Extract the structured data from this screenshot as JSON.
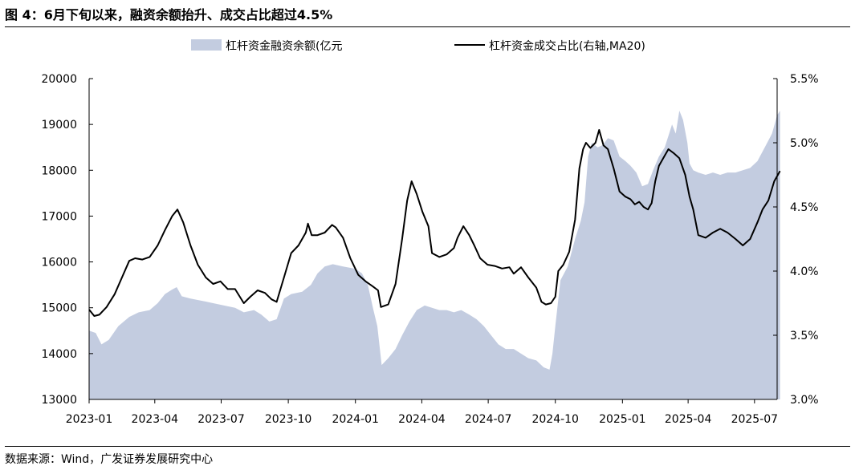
{
  "header": {
    "figure_label": "图 4：",
    "title": "6月下旬以来，融资余额抬升、成交占比超过4.5%"
  },
  "footer": {
    "source": "数据来源：Wind，广发证券发展研究中心"
  },
  "chart_data": {
    "type": "area",
    "legend": {
      "placement": "top",
      "entries": [
        "杠杆资金融资余额(亿元",
        "杠杆资金成交占比(右轴,MA20)"
      ]
    },
    "grid": false,
    "x_ticks": [
      "2023-01",
      "2023-04",
      "2023-07",
      "2023-10",
      "2024-01",
      "2024-04",
      "2024-07",
      "2024-10",
      "2025-01",
      "2025-04",
      "2025-07"
    ],
    "x_range": [
      "2023-01",
      "2025-08"
    ],
    "left_axis": {
      "ticks": [
        "13000",
        "14000",
        "15000",
        "16000",
        "17000",
        "18000",
        "19000",
        "20000"
      ],
      "ylim": [
        13000,
        20000
      ]
    },
    "right_axis": {
      "ticks": [
        "3.0%",
        "3.5%",
        "4.0%",
        "4.5%",
        "5.0%",
        "5.5%"
      ],
      "ylim": [
        3.0,
        5.5
      ]
    },
    "colors": {
      "area": "#c3cce0",
      "line": "#000000"
    },
    "series": [
      {
        "name": "杠杆资金融资余额(亿元",
        "type": "area",
        "axis": "left",
        "points": [
          [
            "2023-01-01",
            14500
          ],
          [
            "2023-01-10",
            14450
          ],
          [
            "2023-01-18",
            14200
          ],
          [
            "2023-01-28",
            14300
          ],
          [
            "2023-02-10",
            14600
          ],
          [
            "2023-02-25",
            14800
          ],
          [
            "2023-03-10",
            14900
          ],
          [
            "2023-03-25",
            14950
          ],
          [
            "2023-04-05",
            15100
          ],
          [
            "2023-04-15",
            15300
          ],
          [
            "2023-04-25",
            15400
          ],
          [
            "2023-05-01",
            15450
          ],
          [
            "2023-05-08",
            15250
          ],
          [
            "2023-05-20",
            15200
          ],
          [
            "2023-06-05",
            15150
          ],
          [
            "2023-06-20",
            15100
          ],
          [
            "2023-07-05",
            15050
          ],
          [
            "2023-07-20",
            15000
          ],
          [
            "2023-08-01",
            14900
          ],
          [
            "2023-08-15",
            14950
          ],
          [
            "2023-08-25",
            14850
          ],
          [
            "2023-09-05",
            14700
          ],
          [
            "2023-09-15",
            14750
          ],
          [
            "2023-09-25",
            15200
          ],
          [
            "2023-10-05",
            15300
          ],
          [
            "2023-10-20",
            15350
          ],
          [
            "2023-11-01",
            15500
          ],
          [
            "2023-11-10",
            15750
          ],
          [
            "2023-11-20",
            15900
          ],
          [
            "2023-12-01",
            15950
          ],
          [
            "2023-12-15",
            15900
          ],
          [
            "2024-01-01",
            15850
          ],
          [
            "2024-01-10",
            15750
          ],
          [
            "2024-01-18",
            15500
          ],
          [
            "2024-01-25",
            15000
          ],
          [
            "2024-01-31",
            14600
          ],
          [
            "2024-02-06",
            13750
          ],
          [
            "2024-02-15",
            13900
          ],
          [
            "2024-02-25",
            14100
          ],
          [
            "2024-03-05",
            14400
          ],
          [
            "2024-03-15",
            14700
          ],
          [
            "2024-03-25",
            14950
          ],
          [
            "2024-04-05",
            15050
          ],
          [
            "2024-04-15",
            15000
          ],
          [
            "2024-04-25",
            14950
          ],
          [
            "2024-05-05",
            14950
          ],
          [
            "2024-05-15",
            14900
          ],
          [
            "2024-05-25",
            14950
          ],
          [
            "2024-06-05",
            14850
          ],
          [
            "2024-06-15",
            14750
          ],
          [
            "2024-06-25",
            14600
          ],
          [
            "2024-07-05",
            14400
          ],
          [
            "2024-07-15",
            14200
          ],
          [
            "2024-07-25",
            14100
          ],
          [
            "2024-08-05",
            14100
          ],
          [
            "2024-08-15",
            14000
          ],
          [
            "2024-08-25",
            13900
          ],
          [
            "2024-09-05",
            13850
          ],
          [
            "2024-09-15",
            13700
          ],
          [
            "2024-09-23",
            13650
          ],
          [
            "2024-09-27",
            14000
          ],
          [
            "2024-10-01",
            14600
          ],
          [
            "2024-10-08",
            15600
          ],
          [
            "2024-10-18",
            15900
          ],
          [
            "2024-10-28",
            16500
          ],
          [
            "2024-11-05",
            16900
          ],
          [
            "2024-11-10",
            17300
          ],
          [
            "2024-11-15",
            18300
          ],
          [
            "2024-11-20",
            18600
          ],
          [
            "2024-11-28",
            18500
          ],
          [
            "2024-12-05",
            18550
          ],
          [
            "2024-12-12",
            18700
          ],
          [
            "2024-12-20",
            18650
          ],
          [
            "2024-12-28",
            18300
          ],
          [
            "2025-01-05",
            18200
          ],
          [
            "2025-01-12",
            18100
          ],
          [
            "2025-01-20",
            17950
          ],
          [
            "2025-01-28",
            17650
          ],
          [
            "2025-02-05",
            17700
          ],
          [
            "2025-02-12",
            18000
          ],
          [
            "2025-02-20",
            18300
          ],
          [
            "2025-02-28",
            18500
          ],
          [
            "2025-03-05",
            18750
          ],
          [
            "2025-03-10",
            19000
          ],
          [
            "2025-03-15",
            18800
          ],
          [
            "2025-03-20",
            19300
          ],
          [
            "2025-03-25",
            19100
          ],
          [
            "2025-03-31",
            18600
          ],
          [
            "2025-04-03",
            18150
          ],
          [
            "2025-04-08",
            18000
          ],
          [
            "2025-04-15",
            17950
          ],
          [
            "2025-04-25",
            17900
          ],
          [
            "2025-05-05",
            17950
          ],
          [
            "2025-05-15",
            17900
          ],
          [
            "2025-05-25",
            17950
          ],
          [
            "2025-06-05",
            17950
          ],
          [
            "2025-06-15",
            18000
          ],
          [
            "2025-06-25",
            18050
          ],
          [
            "2025-07-05",
            18200
          ],
          [
            "2025-07-15",
            18500
          ],
          [
            "2025-07-25",
            18800
          ],
          [
            "2025-08-01",
            19200
          ],
          [
            "2025-08-05",
            19300
          ]
        ]
      },
      {
        "name": "杠杆资金成交占比(右轴,MA20)",
        "type": "line",
        "axis": "right",
        "points": [
          [
            "2023-01-01",
            3.7
          ],
          [
            "2023-01-08",
            3.65
          ],
          [
            "2023-01-15",
            3.66
          ],
          [
            "2023-01-25",
            3.72
          ],
          [
            "2023-02-05",
            3.82
          ],
          [
            "2023-02-15",
            3.95
          ],
          [
            "2023-02-25",
            4.08
          ],
          [
            "2023-03-05",
            4.1
          ],
          [
            "2023-03-15",
            4.09
          ],
          [
            "2023-03-25",
            4.11
          ],
          [
            "2023-04-05",
            4.2
          ],
          [
            "2023-04-15",
            4.32
          ],
          [
            "2023-04-25",
            4.43
          ],
          [
            "2023-05-02",
            4.48
          ],
          [
            "2023-05-10",
            4.38
          ],
          [
            "2023-05-20",
            4.2
          ],
          [
            "2023-05-30",
            4.05
          ],
          [
            "2023-06-10",
            3.95
          ],
          [
            "2023-06-20",
            3.9
          ],
          [
            "2023-06-30",
            3.92
          ],
          [
            "2023-07-10",
            3.86
          ],
          [
            "2023-07-20",
            3.86
          ],
          [
            "2023-08-01",
            3.75
          ],
          [
            "2023-08-10",
            3.8
          ],
          [
            "2023-08-20",
            3.85
          ],
          [
            "2023-08-30",
            3.83
          ],
          [
            "2023-09-08",
            3.78
          ],
          [
            "2023-09-15",
            3.76
          ],
          [
            "2023-09-25",
            3.95
          ],
          [
            "2023-10-05",
            4.14
          ],
          [
            "2023-10-15",
            4.2
          ],
          [
            "2023-10-25",
            4.3
          ],
          [
            "2023-10-28",
            4.37
          ],
          [
            "2023-11-02",
            4.28
          ],
          [
            "2023-11-10",
            4.28
          ],
          [
            "2023-11-20",
            4.3
          ],
          [
            "2023-11-30",
            4.36
          ],
          [
            "2023-12-05",
            4.34
          ],
          [
            "2023-12-15",
            4.26
          ],
          [
            "2023-12-25",
            4.1
          ],
          [
            "2024-01-05",
            3.97
          ],
          [
            "2024-01-15",
            3.92
          ],
          [
            "2024-01-25",
            3.88
          ],
          [
            "2024-02-01",
            3.85
          ],
          [
            "2024-02-05",
            3.72
          ],
          [
            "2024-02-15",
            3.74
          ],
          [
            "2024-02-25",
            3.9
          ],
          [
            "2024-03-05",
            4.25
          ],
          [
            "2024-03-12",
            4.55
          ],
          [
            "2024-03-18",
            4.7
          ],
          [
            "2024-03-25",
            4.6
          ],
          [
            "2024-04-02",
            4.46
          ],
          [
            "2024-04-10",
            4.35
          ],
          [
            "2024-04-15",
            4.14
          ],
          [
            "2024-04-25",
            4.11
          ],
          [
            "2024-05-05",
            4.13
          ],
          [
            "2024-05-15",
            4.18
          ],
          [
            "2024-05-20",
            4.26
          ],
          [
            "2024-05-28",
            4.35
          ],
          [
            "2024-06-05",
            4.28
          ],
          [
            "2024-06-12",
            4.2
          ],
          [
            "2024-06-20",
            4.1
          ],
          [
            "2024-06-30",
            4.05
          ],
          [
            "2024-07-10",
            4.04
          ],
          [
            "2024-07-20",
            4.02
          ],
          [
            "2024-07-30",
            4.03
          ],
          [
            "2024-08-05",
            3.98
          ],
          [
            "2024-08-15",
            4.03
          ],
          [
            "2024-08-25",
            3.95
          ],
          [
            "2024-09-05",
            3.87
          ],
          [
            "2024-09-12",
            3.76
          ],
          [
            "2024-09-18",
            3.74
          ],
          [
            "2024-09-25",
            3.75
          ],
          [
            "2024-10-01",
            3.8
          ],
          [
            "2024-10-05",
            4.0
          ],
          [
            "2024-10-12",
            4.05
          ],
          [
            "2024-10-20",
            4.15
          ],
          [
            "2024-10-28",
            4.4
          ],
          [
            "2024-11-03",
            4.8
          ],
          [
            "2024-11-08",
            4.95
          ],
          [
            "2024-11-12",
            5.0
          ],
          [
            "2024-11-18",
            4.96
          ],
          [
            "2024-11-25",
            5.0
          ],
          [
            "2024-11-30",
            5.1
          ],
          [
            "2024-12-06",
            4.98
          ],
          [
            "2024-12-12",
            4.95
          ],
          [
            "2024-12-20",
            4.8
          ],
          [
            "2024-12-28",
            4.62
          ],
          [
            "2025-01-05",
            4.58
          ],
          [
            "2025-01-12",
            4.56
          ],
          [
            "2025-01-18",
            4.52
          ],
          [
            "2025-01-24",
            4.54
          ],
          [
            "2025-01-30",
            4.5
          ],
          [
            "2025-02-05",
            4.48
          ],
          [
            "2025-02-10",
            4.53
          ],
          [
            "2025-02-15",
            4.7
          ],
          [
            "2025-02-20",
            4.82
          ],
          [
            "2025-02-28",
            4.9
          ],
          [
            "2025-03-05",
            4.95
          ],
          [
            "2025-03-12",
            4.92
          ],
          [
            "2025-03-20",
            4.88
          ],
          [
            "2025-03-28",
            4.75
          ],
          [
            "2025-04-03",
            4.58
          ],
          [
            "2025-04-08",
            4.48
          ],
          [
            "2025-04-15",
            4.28
          ],
          [
            "2025-04-25",
            4.26
          ],
          [
            "2025-05-05",
            4.3
          ],
          [
            "2025-05-15",
            4.33
          ],
          [
            "2025-05-25",
            4.3
          ],
          [
            "2025-06-05",
            4.25
          ],
          [
            "2025-06-15",
            4.2
          ],
          [
            "2025-06-25",
            4.25
          ],
          [
            "2025-07-05",
            4.38
          ],
          [
            "2025-07-12",
            4.48
          ],
          [
            "2025-07-20",
            4.55
          ],
          [
            "2025-07-28",
            4.7
          ],
          [
            "2025-08-05",
            4.78
          ]
        ]
      }
    ]
  }
}
